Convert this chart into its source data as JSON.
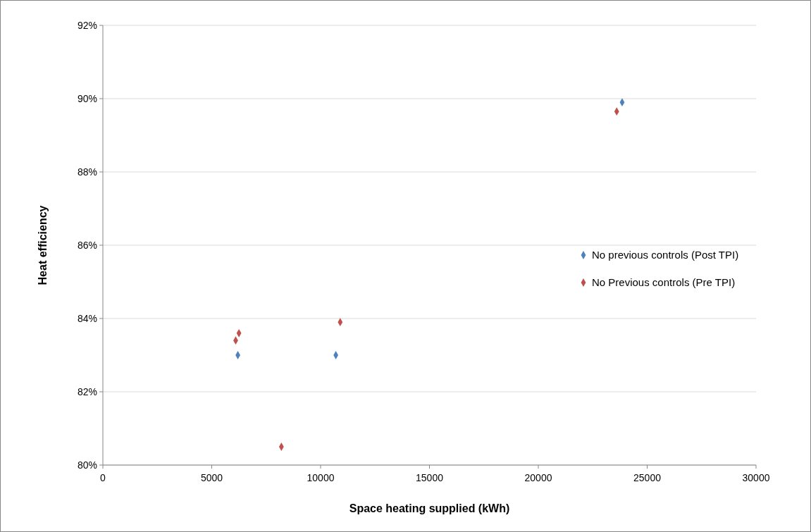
{
  "chart_data": {
    "type": "scatter",
    "xlabel": "Space heating supplied (kWh)",
    "ylabel": "Heat efficiency",
    "xlim": [
      0,
      30000
    ],
    "xticks": [
      0,
      5000,
      10000,
      15000,
      20000,
      25000,
      30000
    ],
    "ylim": [
      80,
      92
    ],
    "yticks": [
      {
        "value": 80,
        "label": "80%"
      },
      {
        "value": 82,
        "label": "82%"
      },
      {
        "value": 84,
        "label": "84%"
      },
      {
        "value": 86,
        "label": "86%"
      },
      {
        "value": 88,
        "label": "88%"
      },
      {
        "value": 90,
        "label": "90%"
      },
      {
        "value": 92,
        "label": "92%"
      }
    ],
    "grid": "y",
    "legend": "right",
    "marker": "diamond",
    "series": [
      {
        "name": "No previous controls (Post TPI)",
        "color": "#4f81bd",
        "x": [
          6200,
          10700,
          23850
        ],
        "values": [
          83.0,
          83.0,
          89.9
        ]
      },
      {
        "name": "No Previous controls (Pre TPI)",
        "color": "#c0504d",
        "x": [
          6100,
          6250,
          8200,
          10900,
          23600
        ],
        "values": [
          83.4,
          83.6,
          80.5,
          83.9,
          89.65
        ]
      }
    ]
  }
}
